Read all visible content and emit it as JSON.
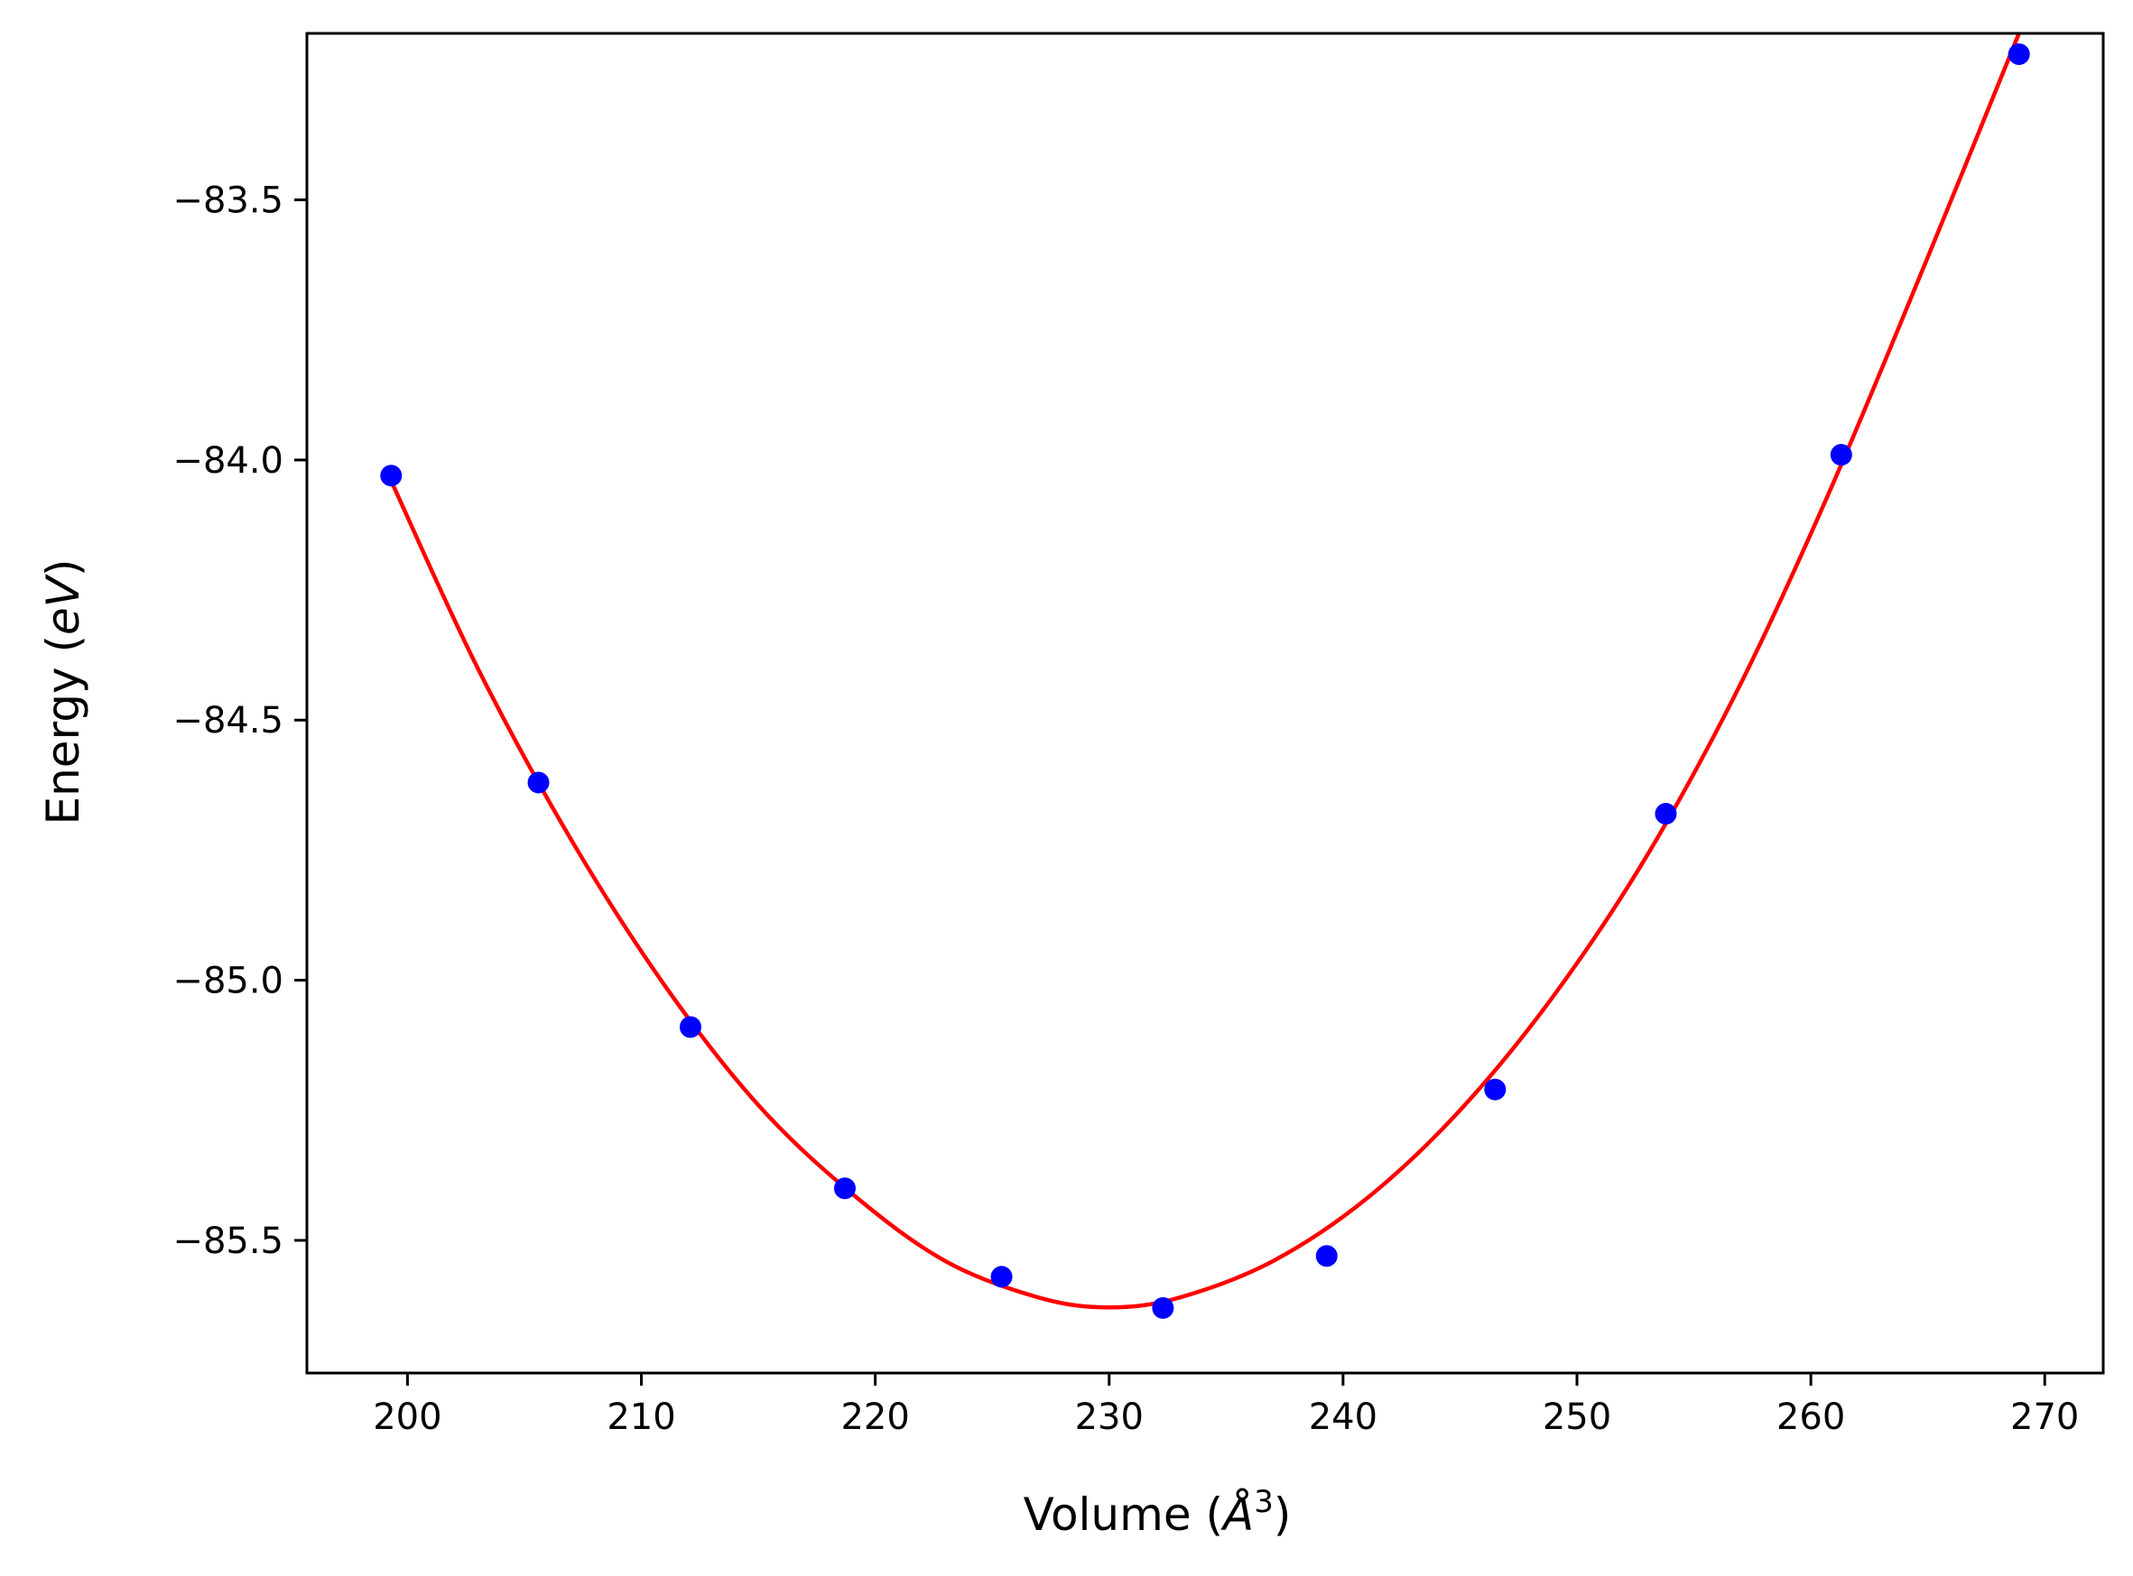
{
  "chart_data": {
    "type": "scatter",
    "title": "",
    "xlabel": {
      "prefix": "Volume (",
      "unit_symbol": "Å",
      "unit_power": "3",
      "suffix": ")"
    },
    "ylabel": {
      "prefix": "Energy (",
      "unit": "eV",
      "suffix": ")"
    },
    "xlim": [
      195.7,
      272.5
    ],
    "ylim": [
      -85.755,
      -83.18
    ],
    "x_ticks": [
      200,
      210,
      220,
      230,
      240,
      250,
      260,
      270
    ],
    "x_tick_labels": [
      "200",
      "210",
      "220",
      "230",
      "240",
      "250",
      "260",
      "270"
    ],
    "y_ticks": [
      -83.5,
      -84.0,
      -84.5,
      -85.0,
      -85.5
    ],
    "y_tick_labels": [
      "−83.5",
      "−84.0",
      "−84.5",
      "−85.0",
      "−85.5"
    ],
    "grid": false,
    "series": [
      {
        "kind": "points",
        "color": "#0000ff",
        "x": [
          199.3,
          205.6,
          212.1,
          218.7,
          225.4,
          232.3,
          239.3,
          246.5,
          253.8,
          261.3,
          268.9
        ],
        "y": [
          -84.03,
          -84.62,
          -85.09,
          -85.4,
          -85.57,
          -85.63,
          -85.53,
          -85.21,
          -84.68,
          -83.99,
          -83.22
        ]
      },
      {
        "kind": "fit_line",
        "color": "#ff0000",
        "x": [
          199.3,
          203,
          207,
          211,
          215,
          219,
          223,
          227,
          230,
          233,
          237,
          241,
          245,
          249,
          253,
          257,
          261,
          265,
          268.9
        ],
        "y": [
          -84.04,
          -84.4,
          -84.73,
          -85.01,
          -85.24,
          -85.41,
          -85.54,
          -85.61,
          -85.629,
          -85.61,
          -85.54,
          -85.42,
          -85.25,
          -85.03,
          -84.76,
          -84.43,
          -84.04,
          -83.61,
          -83.18
        ]
      }
    ]
  }
}
